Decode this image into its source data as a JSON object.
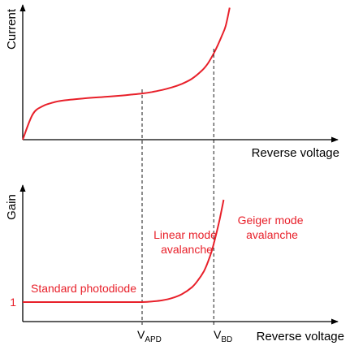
{
  "colors": {
    "curve": "#e8202a",
    "axis": "#000000",
    "guide": "#000000",
    "annotation": "#e8202a"
  },
  "chart_data": [
    {
      "type": "line",
      "xlabel": "Reverse voltage",
      "ylabel": "Current",
      "grid": false,
      "series": [
        {
          "x": [
            0,
            0.05,
            0.1,
            0.15,
            0.2,
            0.3,
            0.4,
            0.5,
            0.55,
            0.6,
            0.65,
            0.7,
            0.75,
            0.8,
            0.85,
            0.9,
            0.93,
            0.96,
            0.98,
            1.0,
            1.02,
            1.04
          ],
          "y": [
            0,
            0.25,
            0.33,
            0.365,
            0.385,
            0.405,
            0.42,
            0.435,
            0.445,
            0.455,
            0.47,
            0.49,
            0.515,
            0.55,
            0.6,
            0.68,
            0.75,
            0.85,
            0.93,
            1.02,
            1.12,
            1.3
          ]
        }
      ]
    },
    {
      "type": "line",
      "xlabel": "Reverse voltage",
      "ylabel": "Gain",
      "grid": false,
      "xticks": [
        {
          "x": 0.6,
          "label": "V",
          "sub": "APD"
        },
        {
          "x": 0.96,
          "label": "V",
          "sub": "BD"
        }
      ],
      "yticks": [
        {
          "y": 1,
          "label": "1"
        }
      ],
      "annotations": [
        {
          "text": "Standard photodiode"
        },
        {
          "text": [
            "Linear mode",
            "avalanche"
          ]
        },
        {
          "text": [
            "Geiger mode",
            "avalanche"
          ]
        }
      ],
      "series": [
        {
          "x": [
            0,
            0.1,
            0.2,
            0.3,
            0.4,
            0.5,
            0.6,
            0.65,
            0.7,
            0.75,
            0.8,
            0.85,
            0.88,
            0.91,
            0.93,
            0.95,
            0.97,
            0.99,
            1.01
          ],
          "y": [
            1,
            1,
            1,
            1,
            1,
            1,
            1,
            1.05,
            1.15,
            1.35,
            1.7,
            2.3,
            2.9,
            3.7,
            4.5,
            5.5,
            6.8,
            8.3,
            10
          ]
        }
      ]
    }
  ]
}
